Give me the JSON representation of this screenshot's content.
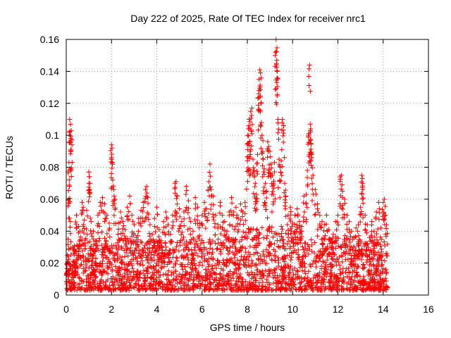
{
  "chart_data": {
    "type": "scatter",
    "title": "Day 222 of 2025, Rate Of TEC Index for receiver nrc1",
    "xlabel": "GPS time / hours",
    "ylabel": "ROTI / TECUs",
    "xlim": [
      0,
      16
    ],
    "ylim": [
      0,
      0.16
    ],
    "x_ticks": [
      "0",
      "2",
      "4",
      "6",
      "8",
      "10",
      "12",
      "14",
      "16"
    ],
    "y_ticks": [
      "0",
      "0.02",
      "0.04",
      "0.06",
      "0.08",
      "0.1",
      "0.12",
      "0.14",
      "0.16"
    ],
    "grid": true,
    "marker": "plus",
    "color": "#ff0000",
    "series": [
      {
        "points": [
          [
            0.02,
            0.013
          ],
          [
            0.05,
            0.025
          ],
          [
            0.08,
            0.035
          ],
          [
            0.1,
            0.06
          ],
          [
            0.12,
            0.083
          ],
          [
            0.13,
            0.072
          ],
          [
            0.15,
            0.11
          ],
          [
            0.17,
            0.1
          ],
          [
            0.2,
            0.098
          ],
          [
            0.22,
            0.103
          ],
          [
            0.25,
            0.094
          ],
          [
            0.18,
            0.046
          ],
          [
            0.3,
            0.03
          ],
          [
            0.35,
            0.025
          ],
          [
            0.4,
            0.02
          ],
          [
            0.45,
            0.05
          ],
          [
            0.55,
            0.043
          ],
          [
            0.6,
            0.04
          ],
          [
            0.7,
            0.058
          ],
          [
            0.75,
            0.055
          ],
          [
            0.8,
            0.047
          ],
          [
            0.9,
            0.053
          ],
          [
            1.0,
            0.077
          ],
          [
            1.02,
            0.074
          ],
          [
            1.05,
            0.07
          ],
          [
            1.1,
            0.046
          ],
          [
            1.2,
            0.04
          ],
          [
            1.3,
            0.034
          ],
          [
            1.4,
            0.05
          ],
          [
            1.5,
            0.058
          ],
          [
            1.6,
            0.061
          ],
          [
            1.7,
            0.057
          ],
          [
            1.8,
            0.05
          ],
          [
            1.9,
            0.045
          ],
          [
            2.0,
            0.094
          ],
          [
            2.02,
            0.092
          ],
          [
            2.0,
            0.085
          ],
          [
            2.05,
            0.072
          ],
          [
            2.1,
            0.066
          ],
          [
            2.15,
            0.06
          ],
          [
            2.3,
            0.045
          ],
          [
            2.4,
            0.052
          ],
          [
            2.5,
            0.046
          ],
          [
            2.6,
            0.041
          ],
          [
            2.7,
            0.055
          ],
          [
            2.8,
            0.062
          ],
          [
            2.9,
            0.05
          ],
          [
            3.0,
            0.044
          ],
          [
            3.1,
            0.036
          ],
          [
            3.2,
            0.048
          ],
          [
            3.3,
            0.053
          ],
          [
            3.4,
            0.058
          ],
          [
            3.5,
            0.066
          ],
          [
            3.55,
            0.068
          ],
          [
            3.6,
            0.061
          ],
          [
            3.7,
            0.044
          ],
          [
            3.8,
            0.038
          ],
          [
            3.9,
            0.048
          ],
          [
            4.0,
            0.055
          ],
          [
            4.1,
            0.041
          ],
          [
            4.2,
            0.034
          ],
          [
            4.3,
            0.046
          ],
          [
            4.4,
            0.052
          ],
          [
            4.5,
            0.044
          ],
          [
            4.6,
            0.038
          ],
          [
            4.7,
            0.05
          ],
          [
            4.8,
            0.07
          ],
          [
            4.85,
            0.071
          ],
          [
            4.9,
            0.062
          ],
          [
            5.0,
            0.054
          ],
          [
            5.1,
            0.046
          ],
          [
            5.2,
            0.052
          ],
          [
            5.3,
            0.068
          ],
          [
            5.4,
            0.059
          ],
          [
            5.5,
            0.046
          ],
          [
            5.6,
            0.04
          ],
          [
            5.7,
            0.061
          ],
          [
            5.8,
            0.055
          ],
          [
            5.9,
            0.045
          ],
          [
            6.0,
            0.05
          ],
          [
            6.1,
            0.058
          ],
          [
            6.2,
            0.054
          ],
          [
            6.3,
            0.071
          ],
          [
            6.35,
            0.082
          ],
          [
            6.4,
            0.066
          ],
          [
            6.5,
            0.062
          ],
          [
            6.6,
            0.05
          ],
          [
            6.7,
            0.044
          ],
          [
            6.8,
            0.058
          ],
          [
            6.9,
            0.05
          ],
          [
            7.0,
            0.046
          ],
          [
            7.1,
            0.04
          ],
          [
            7.2,
            0.052
          ],
          [
            7.3,
            0.061
          ],
          [
            7.4,
            0.052
          ],
          [
            7.5,
            0.055
          ],
          [
            7.6,
            0.048
          ],
          [
            7.7,
            0.057
          ],
          [
            7.8,
            0.052
          ],
          [
            7.9,
            0.058
          ],
          [
            8.0,
            0.084
          ],
          [
            8.02,
            0.1
          ],
          [
            8.05,
            0.104
          ],
          [
            8.08,
            0.11
          ],
          [
            8.1,
            0.096
          ],
          [
            8.12,
            0.09
          ],
          [
            8.15,
            0.115
          ],
          [
            8.2,
            0.117
          ],
          [
            8.25,
            0.085
          ],
          [
            8.3,
            0.078
          ],
          [
            8.35,
            0.07
          ],
          [
            8.4,
            0.063
          ],
          [
            8.45,
            0.088
          ],
          [
            8.5,
            0.126
          ],
          [
            8.52,
            0.128
          ],
          [
            8.55,
            0.141
          ],
          [
            8.58,
            0.139
          ],
          [
            8.6,
            0.12
          ],
          [
            8.62,
            0.108
          ],
          [
            8.65,
            0.1
          ],
          [
            8.7,
            0.085
          ],
          [
            8.75,
            0.079
          ],
          [
            8.8,
            0.07
          ],
          [
            8.85,
            0.065
          ],
          [
            8.9,
            0.096
          ],
          [
            8.95,
            0.093
          ],
          [
            9.0,
            0.09
          ],
          [
            9.05,
            0.082
          ],
          [
            9.1,
            0.075
          ],
          [
            9.15,
            0.07
          ],
          [
            9.2,
            0.083
          ],
          [
            9.25,
            0.152
          ],
          [
            9.27,
            0.16
          ],
          [
            9.3,
            0.147
          ],
          [
            9.3,
            0.133
          ],
          [
            9.32,
            0.14
          ],
          [
            9.35,
            0.11
          ],
          [
            9.4,
            0.085
          ],
          [
            9.45,
            0.08
          ],
          [
            9.5,
            0.084
          ],
          [
            9.55,
            0.11
          ],
          [
            9.6,
            0.106
          ],
          [
            9.65,
            0.07
          ],
          [
            9.7,
            0.062
          ],
          [
            9.8,
            0.05
          ],
          [
            9.9,
            0.055
          ],
          [
            10.0,
            0.045
          ],
          [
            10.1,
            0.05
          ],
          [
            10.2,
            0.054
          ],
          [
            10.3,
            0.046
          ],
          [
            10.4,
            0.04
          ],
          [
            10.5,
            0.062
          ],
          [
            10.6,
            0.063
          ],
          [
            10.65,
            0.078
          ],
          [
            10.7,
            0.1
          ],
          [
            10.72,
            0.101
          ],
          [
            10.75,
            0.144
          ],
          [
            10.78,
            0.107
          ],
          [
            10.8,
            0.104
          ],
          [
            10.82,
            0.095
          ],
          [
            10.85,
            0.088
          ],
          [
            10.9,
            0.075
          ],
          [
            11.0,
            0.066
          ],
          [
            11.1,
            0.057
          ],
          [
            11.2,
            0.05
          ],
          [
            11.3,
            0.046
          ],
          [
            11.4,
            0.044
          ],
          [
            11.5,
            0.05
          ],
          [
            11.6,
            0.041
          ],
          [
            11.7,
            0.035
          ],
          [
            11.8,
            0.038
          ],
          [
            11.9,
            0.046
          ],
          [
            12.0,
            0.05
          ],
          [
            12.1,
            0.074
          ],
          [
            12.15,
            0.075
          ],
          [
            12.2,
            0.065
          ],
          [
            12.3,
            0.06
          ],
          [
            12.4,
            0.05
          ],
          [
            12.5,
            0.046
          ],
          [
            12.6,
            0.04
          ],
          [
            12.7,
            0.036
          ],
          [
            12.8,
            0.042
          ],
          [
            12.9,
            0.044
          ],
          [
            13.0,
            0.055
          ],
          [
            13.05,
            0.075
          ],
          [
            13.08,
            0.073
          ],
          [
            13.1,
            0.066
          ],
          [
            13.2,
            0.05
          ],
          [
            13.3,
            0.044
          ],
          [
            13.4,
            0.036
          ],
          [
            13.5,
            0.046
          ],
          [
            13.6,
            0.04
          ],
          [
            13.7,
            0.052
          ],
          [
            13.8,
            0.058
          ],
          [
            13.9,
            0.042
          ],
          [
            14.0,
            0.058
          ],
          [
            14.05,
            0.06
          ],
          [
            14.1,
            0.05
          ],
          [
            14.15,
            0.044
          ]
        ]
      }
    ],
    "dense_band": {
      "x_range": [
        0,
        14.2
      ],
      "y_range": [
        0.003,
        0.035
      ]
    }
  }
}
